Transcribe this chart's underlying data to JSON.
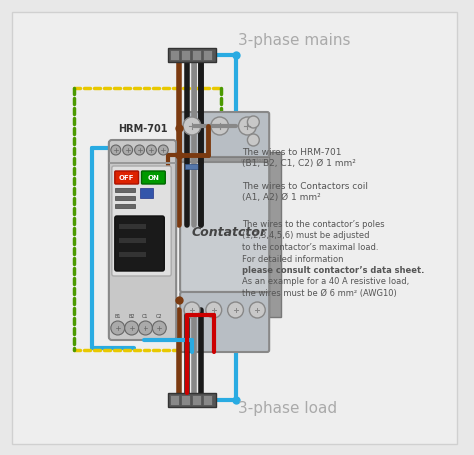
{
  "bg_color": "#e8e8e8",
  "title_mains": "3-phase mains",
  "title_load": "3-phase load",
  "hrm_label": "HRM-701",
  "contactor_label": "Contatctor",
  "text1_title": "The wires to HRM-701",
  "text1_body": "(B1, B2, C1, C2) Ø 1 mm²",
  "text2_title": "The wires to Contactors coil",
  "text2_body": "(A1, A2) Ø 1 mm²",
  "text3_line1": "The wires to the contactor’s poles",
  "text3_line2": "(1,2,3,4,5,6) must be adjusted",
  "text3_line3": "to the contactor’s maximal load.",
  "text3_line4": "For detailed information",
  "text3_line5": "please consult contactor’s data sheet.",
  "text3_line6": "As an example for a 40 A resistive load,",
  "text3_line7": "the wires must be Ø 6 mm² (AWG10)",
  "wire_blue": "#29abe2",
  "wire_brown": "#7B3A10",
  "wire_black": "#1a1a1a",
  "wire_gray": "#888888",
  "wire_red": "#cc0000",
  "dashed_yellow": "#e8c800",
  "dashed_green": "#4a9900",
  "contactor_bg": "#c8ccd0",
  "hrm_bg": "#c8c8c8"
}
